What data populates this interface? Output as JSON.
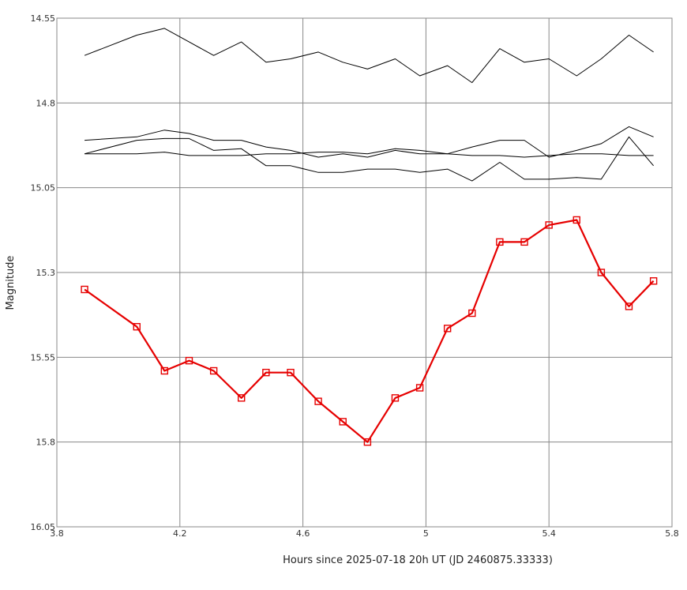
{
  "chart_data": {
    "type": "line",
    "xlabel": "Hours since 2025-07-18 20h UT (JD 2460875.33333)",
    "ylabel": "Magnitude",
    "xlim": [
      3.8,
      5.8
    ],
    "ylim": [
      14.55,
      16.05
    ],
    "y_inverted": true,
    "grid": true,
    "x_ticks": [
      "3.8",
      "4.2",
      "4.6",
      "5",
      "5.4",
      "5.8"
    ],
    "y_ticks": [
      "14.55",
      "14.8",
      "15.05",
      "15.3",
      "15.55",
      "15.8",
      "16.05"
    ],
    "x": [
      3.89,
      4.06,
      4.15,
      4.23,
      4.31,
      4.4,
      4.48,
      4.56,
      4.65,
      4.73,
      4.81,
      4.9,
      4.98,
      5.07,
      5.15,
      5.24,
      5.32,
      5.4,
      5.49,
      5.57,
      5.66,
      5.74
    ],
    "series": [
      {
        "color": "#000000",
        "markers": false,
        "values": [
          14.66,
          14.6,
          14.58,
          14.62,
          14.66,
          14.62,
          14.68,
          14.67,
          14.65,
          14.68,
          14.7,
          14.67,
          14.72,
          14.69,
          14.74,
          14.64,
          14.68,
          14.67,
          14.72,
          14.67,
          14.6,
          14.65
        ]
      },
      {
        "color": "#000000",
        "markers": false,
        "values": [
          14.91,
          14.9,
          14.88,
          14.89,
          14.91,
          14.91,
          14.93,
          14.94,
          14.96,
          14.95,
          14.96,
          14.94,
          14.95,
          14.95,
          14.93,
          14.91,
          14.91,
          14.96,
          14.94,
          14.92,
          14.87,
          14.9
        ]
      },
      {
        "color": "#000000",
        "markers": false,
        "values": [
          14.95,
          14.95,
          14.945,
          14.955,
          14.955,
          14.955,
          14.95,
          14.95,
          14.945,
          14.945,
          14.95,
          14.935,
          14.94,
          14.95,
          14.955,
          14.955,
          14.96,
          14.955,
          14.95,
          14.95,
          14.955,
          14.955
        ]
      },
      {
        "color": "#000000",
        "markers": false,
        "values": [
          14.95,
          14.91,
          14.905,
          14.905,
          14.94,
          14.935,
          14.985,
          14.985,
          15.005,
          15.005,
          14.995,
          14.995,
          15.005,
          14.995,
          15.03,
          14.975,
          15.025,
          15.025,
          15.02,
          15.025,
          14.9,
          14.985
        ]
      },
      {
        "color": "#e60000",
        "markers": true,
        "marker_shape": "square",
        "values": [
          15.35,
          15.46,
          15.59,
          15.56,
          15.59,
          15.67,
          15.595,
          15.595,
          15.68,
          15.74,
          15.8,
          15.67,
          15.64,
          15.465,
          15.42,
          15.21,
          15.21,
          15.16,
          15.145,
          15.3,
          15.4,
          15.325
        ]
      }
    ]
  }
}
